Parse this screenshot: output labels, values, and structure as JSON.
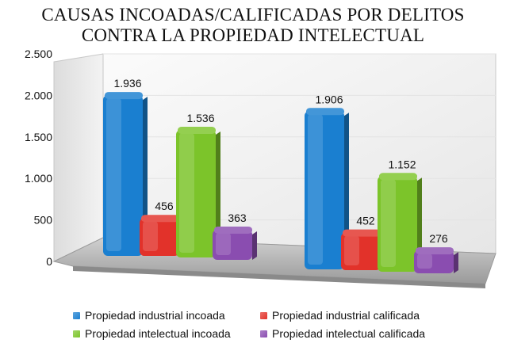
{
  "chart_data": {
    "type": "bar",
    "title_lines": [
      "CAUSAS INCOADAS/CALIFICADAS POR DELITOS",
      "CONTRA LA PROPIEDAD INTELECTUAL"
    ],
    "ylim": [
      0,
      2500
    ],
    "yticks": [
      {
        "value": 0,
        "label": "0"
      },
      {
        "value": 500,
        "label": "500"
      },
      {
        "value": 1000,
        "label": "1.000"
      },
      {
        "value": 1500,
        "label": "1.500"
      },
      {
        "value": 2000,
        "label": "2.000"
      },
      {
        "value": 2500,
        "label": "2.500"
      }
    ],
    "groups": 2,
    "grid": true,
    "legend_position": "bottom",
    "series": [
      {
        "name": "Propiedad industrial incoada",
        "color": "#1a7fd0",
        "values": [
          1936,
          1906
        ],
        "labels": [
          "1.936",
          "1.906"
        ]
      },
      {
        "name": "Propiedad industrial calificada",
        "color": "#e2322a",
        "values": [
          456,
          452
        ],
        "labels": [
          "456",
          "452"
        ]
      },
      {
        "name": "Propiedad intelectual incoada",
        "color": "#7cc42a",
        "values": [
          1536,
          1152
        ],
        "labels": [
          "1.536",
          "1.152"
        ]
      },
      {
        "name": "Propiedad intelectual calificada",
        "color": "#8a4db0",
        "values": [
          363,
          276
        ],
        "labels": [
          "363",
          "276"
        ]
      }
    ]
  }
}
